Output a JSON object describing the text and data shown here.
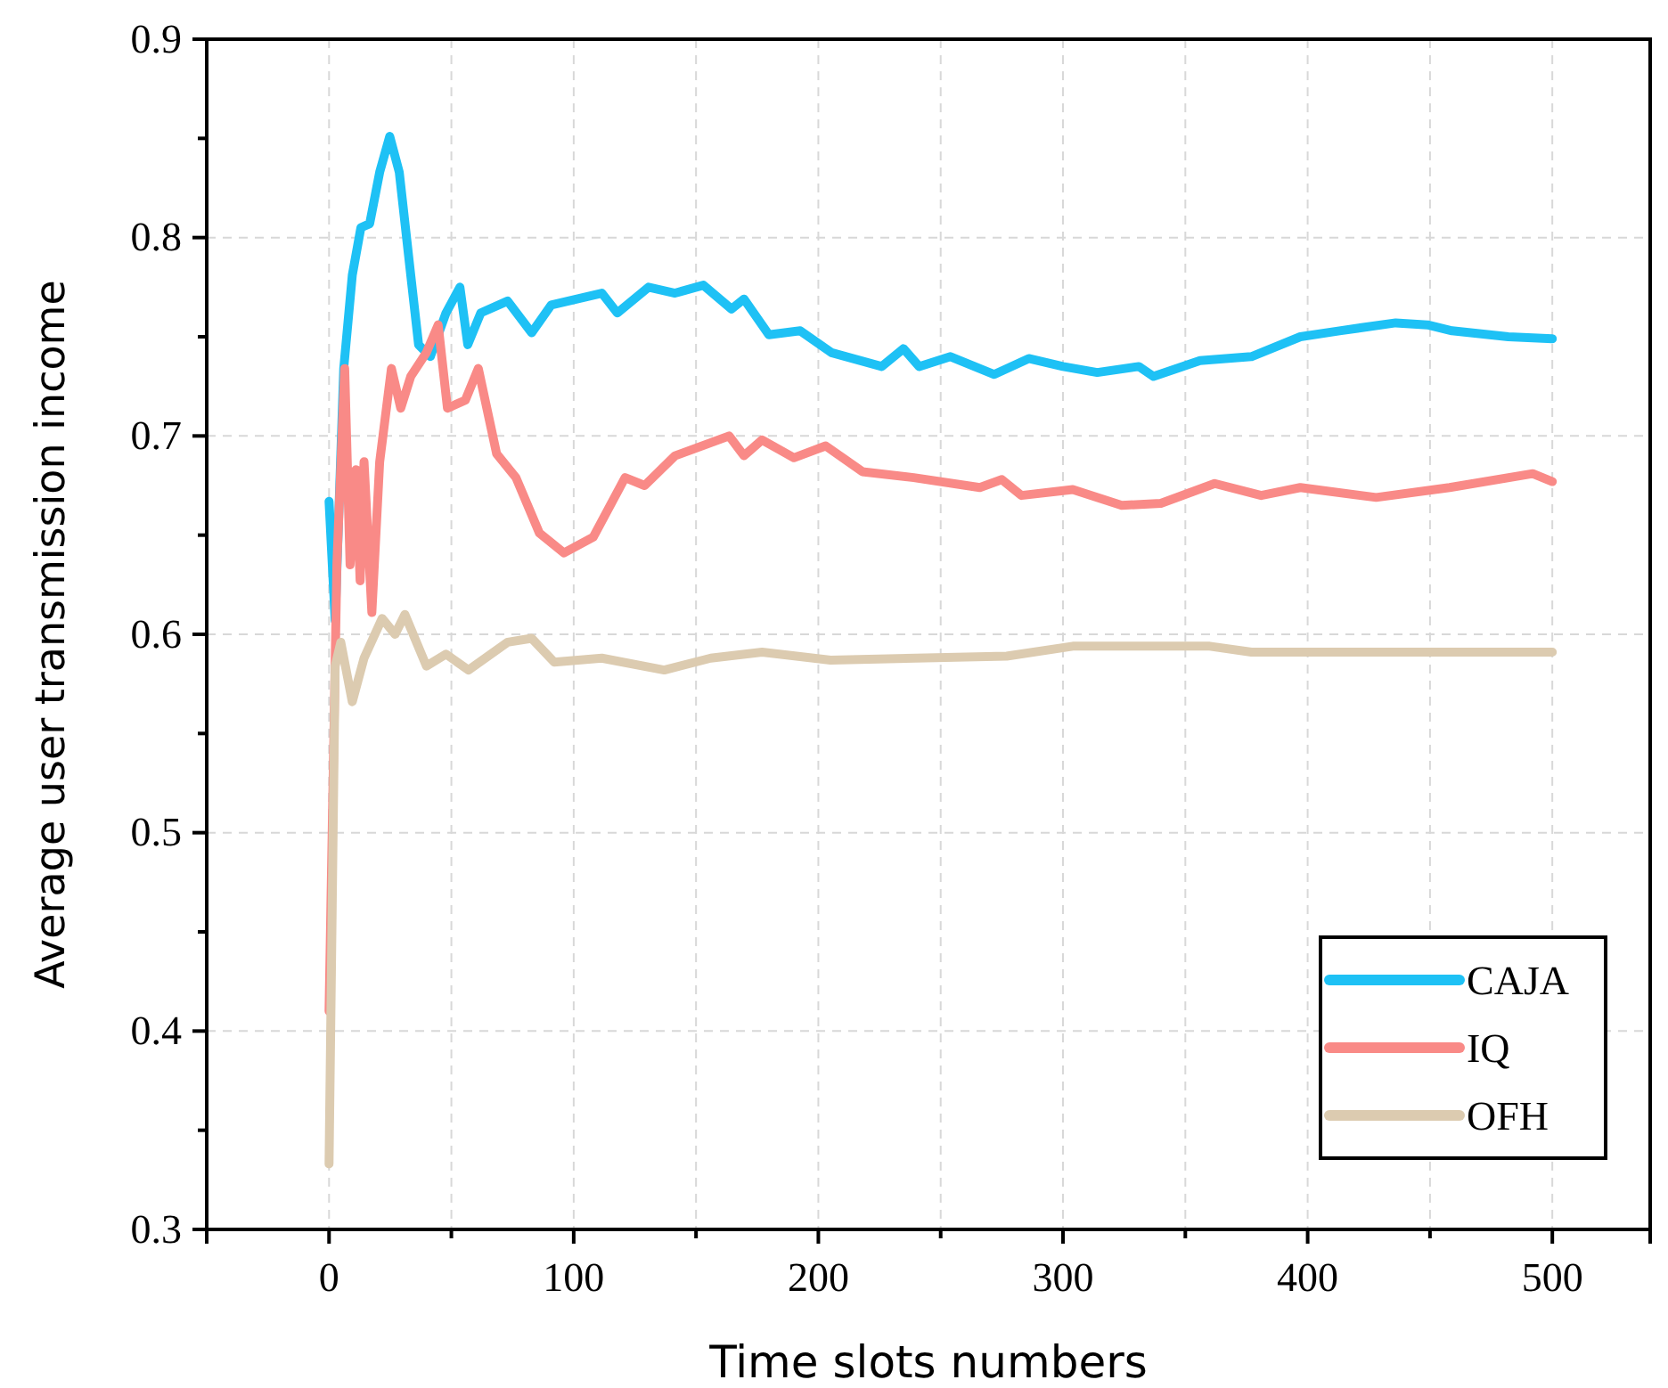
{
  "chart_data": {
    "type": "line",
    "xlabel": "Time slots numbers",
    "ylabel": "Average user transmission income",
    "xlim": [
      -50,
      540
    ],
    "ylim": [
      0.3,
      0.9
    ],
    "xticks": [
      {
        "value": -50,
        "label": null
      },
      0,
      {
        "value": 50,
        "label": null
      },
      100,
      {
        "value": 150,
        "label": null
      },
      200,
      {
        "value": 250,
        "label": null
      },
      300,
      {
        "value": 350,
        "label": null
      },
      400,
      {
        "value": 450,
        "label": null
      },
      500
    ],
    "yticks": [
      0.3,
      {
        "value": 0.35,
        "label": null
      },
      0.4,
      {
        "value": 0.45,
        "label": null
      },
      0.5,
      {
        "value": 0.55,
        "label": null
      },
      0.6,
      {
        "value": 0.65,
        "label": null
      },
      0.7,
      {
        "value": 0.75,
        "label": null
      },
      0.8,
      {
        "value": 0.85,
        "label": null
      },
      0.9
    ],
    "grid": true,
    "legend": "bottom right",
    "line_style": "solid",
    "marker": "none",
    "series": [
      {
        "name": "CAJA",
        "color": "#1ec1f5",
        "x": [
          0,
          2.5,
          6,
          9.5,
          13,
          16.6,
          20.7,
          24.8,
          28.7,
          33.4,
          36.6,
          41.4,
          47.8,
          53.5,
          56.7,
          62,
          73,
          82.8,
          90.8,
          111.5,
          117.8,
          130.6,
          141.4,
          153,
          164.5,
          169.6,
          179.8,
          192.6,
          205.4,
          225.9,
          234.8,
          241.2,
          254,
          271.9,
          286,
          300,
          314,
          331,
          337,
          356,
          377,
          397,
          413,
          436,
          449,
          459,
          482,
          500
        ],
        "values": [
          0.667,
          0.607,
          0.734,
          0.781,
          0.805,
          0.807,
          0.833,
          0.851,
          0.833,
          0.781,
          0.746,
          0.74,
          0.762,
          0.775,
          0.746,
          0.762,
          0.768,
          0.752,
          0.766,
          0.772,
          0.762,
          0.775,
          0.772,
          0.776,
          0.764,
          0.769,
          0.751,
          0.753,
          0.742,
          0.735,
          0.744,
          0.735,
          0.74,
          0.731,
          0.739,
          0.735,
          0.732,
          0.735,
          0.73,
          0.738,
          0.74,
          0.75,
          0.753,
          0.757,
          0.756,
          0.753,
          0.75,
          0.749
        ]
      },
      {
        "name": "IQ",
        "color": "#f98a87",
        "x": [
          0,
          3.2,
          6.4,
          8.6,
          11,
          12.7,
          14.3,
          17.5,
          20.7,
          25.5,
          29.3,
          33.4,
          39.8,
          44.6,
          48.4,
          55.7,
          61,
          68.5,
          76.4,
          86,
          96,
          108,
          121,
          129,
          141.4,
          163.5,
          169.6,
          177,
          190,
          203,
          218,
          239,
          266,
          275,
          283,
          304,
          324,
          340,
          362,
          381,
          397,
          428,
          458,
          492,
          500
        ],
        "values": [
          0.41,
          0.635,
          0.734,
          0.635,
          0.683,
          0.627,
          0.687,
          0.611,
          0.687,
          0.734,
          0.714,
          0.73,
          0.742,
          0.756,
          0.714,
          0.718,
          0.734,
          0.691,
          0.679,
          0.651,
          0.641,
          0.649,
          0.679,
          0.675,
          0.69,
          0.7,
          0.69,
          0.698,
          0.689,
          0.695,
          0.682,
          0.679,
          0.674,
          0.678,
          0.67,
          0.673,
          0.665,
          0.666,
          0.676,
          0.67,
          0.674,
          0.669,
          0.674,
          0.681,
          0.677
        ]
      },
      {
        "name": "OFH",
        "color": "#dccbb0",
        "x": [
          0,
          2.5,
          4.8,
          9.5,
          14.3,
          21.7,
          27,
          31,
          39.8,
          47.8,
          57,
          73,
          82.8,
          92,
          111.5,
          137,
          156,
          177,
          205,
          277,
          304,
          360,
          377,
          458,
          500
        ],
        "values": [
          0.333,
          0.584,
          0.596,
          0.566,
          0.588,
          0.608,
          0.6,
          0.61,
          0.584,
          0.59,
          0.582,
          0.596,
          0.598,
          0.586,
          0.588,
          0.582,
          0.588,
          0.591,
          0.587,
          0.589,
          0.594,
          0.594,
          0.591,
          0.591,
          0.591
        ]
      }
    ]
  }
}
